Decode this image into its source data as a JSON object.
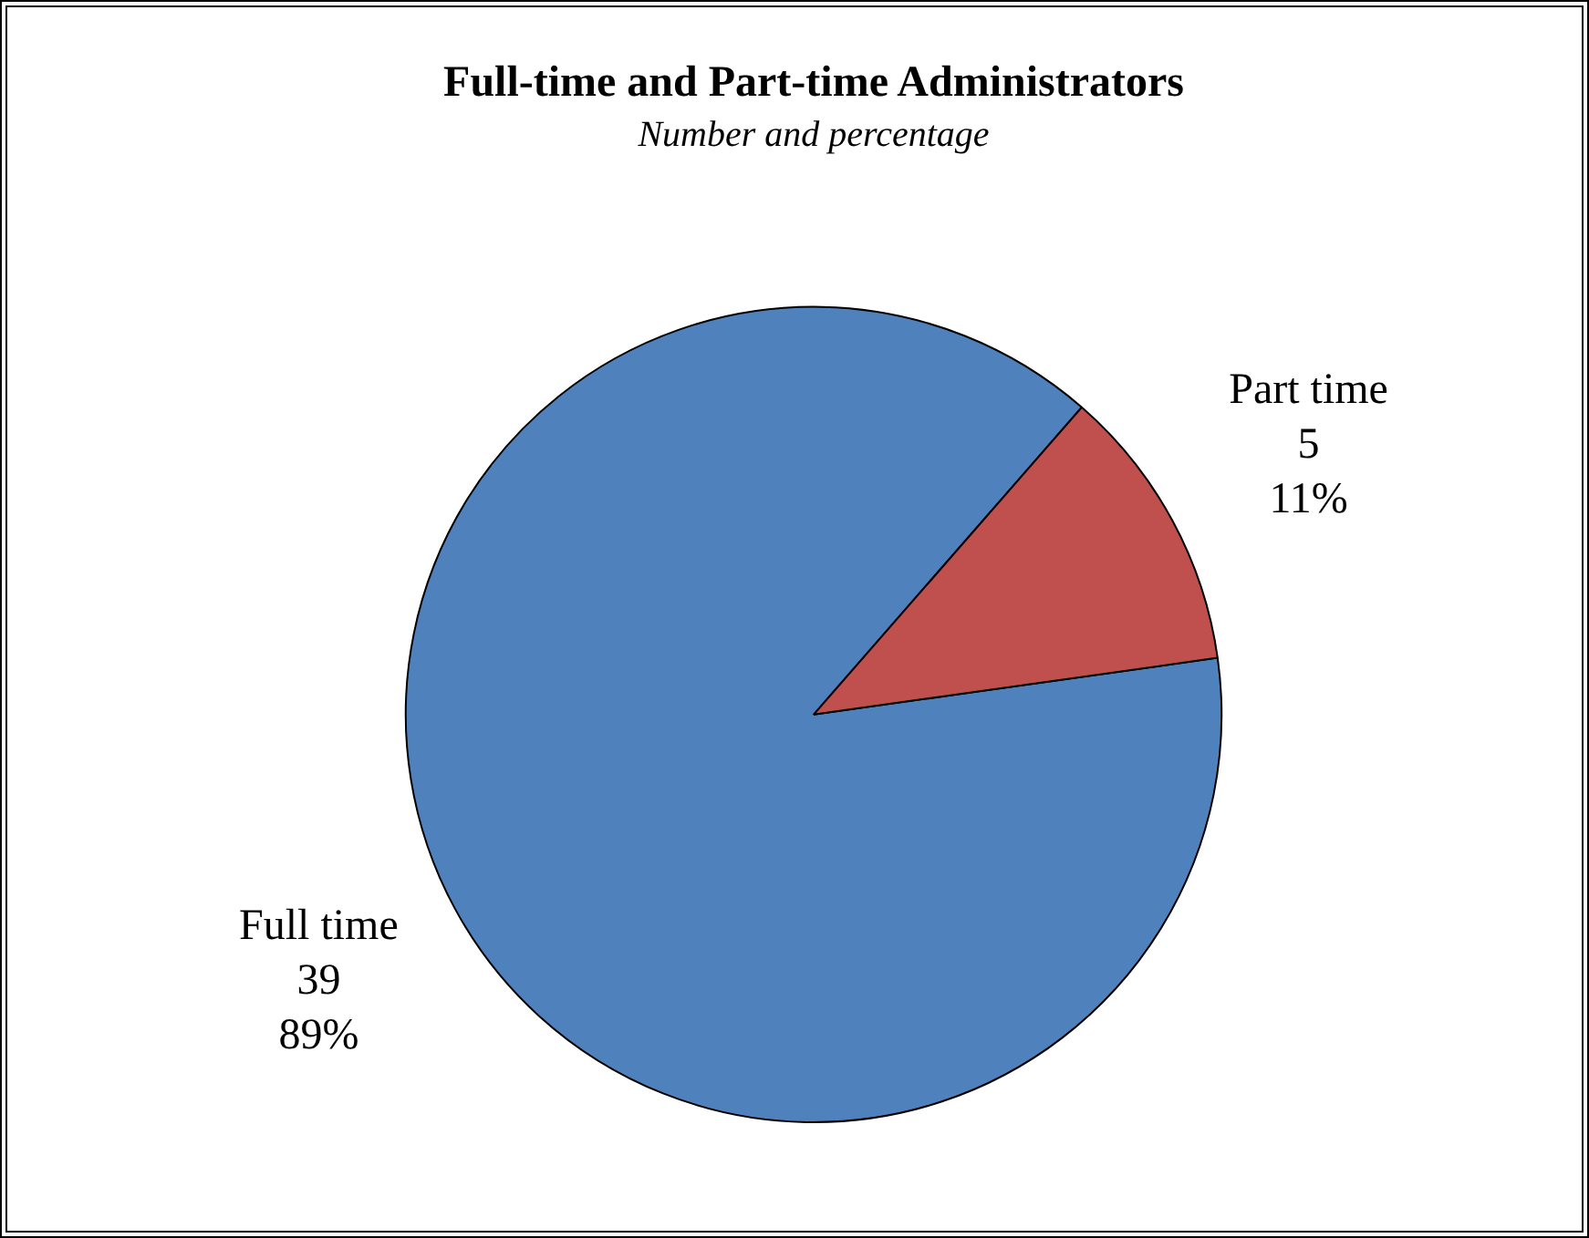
{
  "chart_data": {
    "type": "pie",
    "title": "Full-time and Part-time Administrators",
    "subtitle": "Number and percentage",
    "categories": [
      "Full time",
      "Part time"
    ],
    "values": [
      39,
      5
    ],
    "colors": [
      "#4f81bd",
      "#c0504d"
    ],
    "value_labels": [
      "39\n89%",
      "5\n11%"
    ]
  }
}
